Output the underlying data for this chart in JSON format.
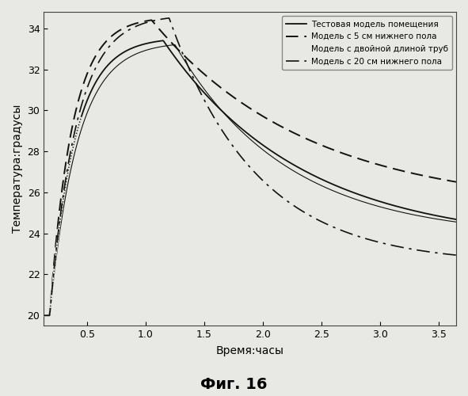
{
  "title": "",
  "xlabel": "Время:часы",
  "ylabel": "Температура:градусы",
  "fig_caption": "Фиг. 16",
  "xlim": [
    0.13,
    3.65
  ],
  "ylim": [
    19.5,
    34.8
  ],
  "xticks": [
    0.5,
    1.0,
    1.5,
    2.0,
    2.5,
    3.0,
    3.5
  ],
  "yticks": [
    20,
    22,
    24,
    26,
    28,
    30,
    32,
    34
  ],
  "legend_entries": [
    "Тестовая модель помещения",
    "Модель с 5 см нижнего пола",
    "Модель с двойной длиной труб",
    "Модель с 20 см нижнего пола"
  ],
  "background_color": "#e8e8e4",
  "line_color": "#111111"
}
